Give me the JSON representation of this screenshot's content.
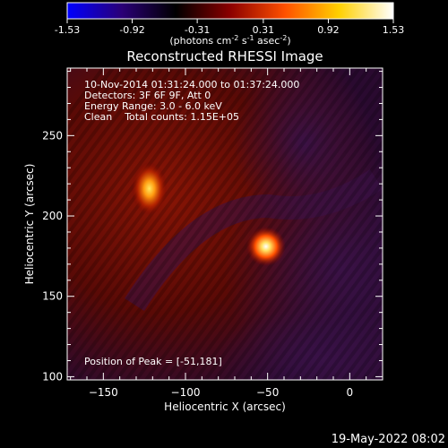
{
  "chart_data": {
    "type": "heatmap",
    "title": "Reconstructed RHESSI Image",
    "colorbar": {
      "ticks": [
        "-1.53",
        "-0.92",
        "-0.31",
        "0.31",
        "0.92",
        "1.53"
      ],
      "range": [
        -1.53,
        1.53
      ],
      "label_parts": [
        "(photons cm",
        "-2",
        " s",
        "-1",
        " asec",
        "-2",
        ")"
      ],
      "colors": [
        "#0000ff",
        "#2a0077",
        "#000000",
        "#8b0000",
        "#ff5000",
        "#ffd000",
        "#ffffff"
      ]
    },
    "xlabel": "Heliocentric X (arcsec)",
    "ylabel": "Heliocentric Y (arcsec)",
    "xlim": [
      -172,
      20
    ],
    "ylim": [
      98,
      292
    ],
    "xticks": [
      -150,
      -100,
      -50,
      0
    ],
    "yticks": [
      100,
      150,
      200,
      250
    ],
    "xtick_labels": [
      "−150",
      "−100",
      "−50",
      "0"
    ],
    "ytick_labels": [
      "100",
      "150",
      "200",
      "250"
    ],
    "sources": [
      {
        "x": -122,
        "y": 217,
        "peak": 1.3
      },
      {
        "x": -51,
        "y": 181,
        "peak": 1.53
      }
    ],
    "info_lines": [
      "10-Nov-2014 01:31:24.000 to 01:37:24.000",
      "Detectors: 3F 6F 9F, Att 0",
      "Energy Range: 3.0 - 6.0 keV",
      "Clean    Total counts: 1.15E+05"
    ],
    "peak_text": "Position of Peak = [-51,181]",
    "timestamp": "19-May-2022 08:02"
  }
}
